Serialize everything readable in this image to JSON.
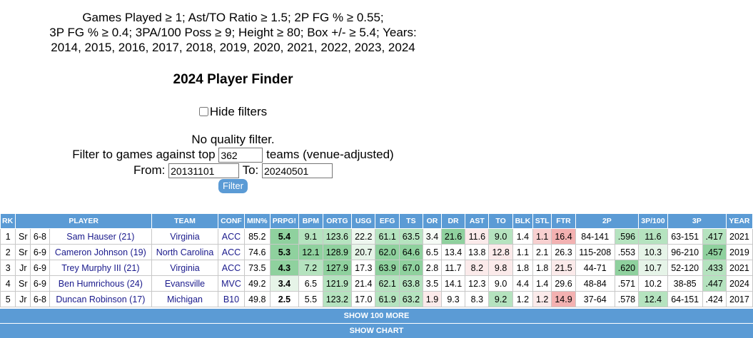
{
  "criteria": {
    "line1": "Games Played ≥ 1; Ast/TO Ratio ≥ 1.5; 2P FG % ≥ 0.55;",
    "line2": "3P FG % ≥ 0.4; 3PA/100 Poss ≥ 9; Height ≥ 80; Box +/- ≥ 5.4; Years:",
    "line3": "2014, 2015, 2016, 2017, 2018, 2019, 2020, 2021, 2022, 2023, 2024"
  },
  "title": "2024 Player Finder",
  "hide_filters_label": "Hide filters",
  "quality_text": "No quality filter.",
  "filter": {
    "prefix": "Filter to games against top",
    "top_value": "362",
    "suffix": "teams (venue-adjusted)",
    "from_label": "From:",
    "from_value": "20131101",
    "to_label": "To:",
    "to_value": "20240501",
    "button": "Filter"
  },
  "columns": [
    "RK",
    "",
    "",
    "PLAYER",
    "TEAM",
    "CONF",
    "MIN%",
    "PRPG!",
    "BPM",
    "ORTG",
    "USG",
    "EFG",
    "TS",
    "OR",
    "DR",
    "AST",
    "TO",
    "BLK",
    "STL",
    "FTR",
    "2P",
    "",
    "3P/100",
    "3P",
    "",
    "YEAR"
  ],
  "rows": [
    {
      "rk": "1",
      "cls": "Sr",
      "ht": "6-8",
      "player": "Sam Hauser (21)",
      "team": "Virginia",
      "conf": "ACC",
      "min": "85.2",
      "prpg": "5.4",
      "bpm": "9.1",
      "ortg": "123.6",
      "usg": "22.2",
      "efg": "61.1",
      "ts": "63.5",
      "or": "3.4",
      "dr": "21.6",
      "ast": "11.6",
      "to": "9.0",
      "blk": "1.4",
      "stl": "1.1",
      "ftr": "16.4",
      "fg2": "84-141",
      "pct2": ".596",
      "p3_100": "11.6",
      "fg3": "63-151",
      "pct3": ".417",
      "year": "2021"
    },
    {
      "rk": "2",
      "cls": "Sr",
      "ht": "6-9",
      "player": "Cameron Johnson (19)",
      "team": "North Carolina",
      "conf": "ACC",
      "min": "74.6",
      "prpg": "5.3",
      "bpm": "12.1",
      "ortg": "128.9",
      "usg": "20.7",
      "efg": "62.0",
      "ts": "64.6",
      "or": "6.5",
      "dr": "13.4",
      "ast": "13.8",
      "to": "12.8",
      "blk": "1.1",
      "stl": "2.1",
      "ftr": "26.3",
      "fg2": "115-208",
      "pct2": ".553",
      "p3_100": "10.3",
      "fg3": "96-210",
      "pct3": ".457",
      "year": "2019"
    },
    {
      "rk": "3",
      "cls": "Jr",
      "ht": "6-9",
      "player": "Trey Murphy III (21)",
      "team": "Virginia",
      "conf": "ACC",
      "min": "73.5",
      "prpg": "4.3",
      "bpm": "7.2",
      "ortg": "127.9",
      "usg": "17.3",
      "efg": "63.9",
      "ts": "67.0",
      "or": "2.8",
      "dr": "11.7",
      "ast": "8.2",
      "to": "9.8",
      "blk": "1.8",
      "stl": "1.8",
      "ftr": "21.5",
      "fg2": "44-71",
      "pct2": ".620",
      "p3_100": "10.7",
      "fg3": "52-120",
      "pct3": ".433",
      "year": "2021"
    },
    {
      "rk": "4",
      "cls": "Sr",
      "ht": "6-9",
      "player": "Ben Humrichous (24)",
      "team": "Evansville",
      "conf": "MVC",
      "min": "49.2",
      "prpg": "3.4",
      "bpm": "6.5",
      "ortg": "121.9",
      "usg": "21.4",
      "efg": "62.1",
      "ts": "63.8",
      "or": "3.5",
      "dr": "14.1",
      "ast": "12.3",
      "to": "9.0",
      "blk": "4.4",
      "stl": "1.4",
      "ftr": "29.6",
      "fg2": "48-84",
      "pct2": ".571",
      "p3_100": "10.2",
      "fg3": "38-85",
      "pct3": ".447",
      "year": "2024"
    },
    {
      "rk": "5",
      "cls": "Jr",
      "ht": "6-8",
      "player": "Duncan Robinson (17)",
      "team": "Michigan",
      "conf": "B10",
      "min": "49.8",
      "prpg": "2.5",
      "bpm": "5.5",
      "ortg": "123.2",
      "usg": "17.0",
      "efg": "61.9",
      "ts": "63.2",
      "or": "1.9",
      "dr": "9.3",
      "ast": "8.3",
      "to": "9.2",
      "blk": "1.2",
      "stl": "1.2",
      "ftr": "14.9",
      "fg2": "37-64",
      "pct2": ".578",
      "p3_100": "12.4",
      "fg3": "64-151",
      "pct3": ".424",
      "year": "2017"
    }
  ],
  "cell_colors": [
    {
      "prpg": "#8fd19e",
      "bpm": "#b5e3bf",
      "ortg": "#b5e3bf",
      "usg": "#eef7ef",
      "efg": "#b5e3bf",
      "ts": "#b5e3bf",
      "or": "#f6fbf6",
      "dr": "#8fd19e",
      "ast": "#fbeaea",
      "to": "#b5e3bf",
      "blk": "#ffffff",
      "stl": "#f8d0d0",
      "ftr": "#f3b1b1",
      "fg2": "#ffffff",
      "pct2": "#b5e3bf",
      "p3_100": "#b5e3bf",
      "fg3": "#ffffff",
      "pct3": "#b5e3bf",
      "year": "#ffffff"
    },
    {
      "prpg": "#8fd19e",
      "bpm": "#8fd19e",
      "ortg": "#8fd19e",
      "usg": "#e6f4e8",
      "efg": "#8fd19e",
      "ts": "#8fd19e",
      "or": "#ffffff",
      "dr": "#ffffff",
      "ast": "#ffffff",
      "to": "#fbeaea",
      "blk": "#ffffff",
      "stl": "#ffffff",
      "ftr": "#ffffff",
      "fg2": "#ffffff",
      "pct2": "#ffffff",
      "p3_100": "#e6f4e8",
      "fg3": "#ffffff",
      "pct3": "#8fd19e",
      "year": "#ffffff"
    },
    {
      "prpg": "#8fd19e",
      "bpm": "#b5e3bf",
      "ortg": "#8fd19e",
      "usg": "#ffffff",
      "efg": "#8fd19e",
      "ts": "#8fd19e",
      "or": "#ffffff",
      "dr": "#ffffff",
      "ast": "#fbeaea",
      "to": "#fbeaea",
      "blk": "#ffffff",
      "stl": "#ffffff",
      "ftr": "#fbeaea",
      "fg2": "#ffffff",
      "pct2": "#8fd19e",
      "p3_100": "#e6f4e8",
      "fg3": "#ffffff",
      "pct3": "#b5e3bf",
      "year": "#ffffff"
    },
    {
      "prpg": "#e6f4e8",
      "bpm": "#ffffff",
      "ortg": "#b5e3bf",
      "usg": "#ffffff",
      "efg": "#b5e3bf",
      "ts": "#b5e3bf",
      "or": "#ffffff",
      "dr": "#ffffff",
      "ast": "#ffffff",
      "to": "#ffffff",
      "blk": "#ffffff",
      "stl": "#ffffff",
      "ftr": "#ffffff",
      "fg2": "#ffffff",
      "pct2": "#ffffff",
      "p3_100": "#ffffff",
      "fg3": "#ffffff",
      "pct3": "#b5e3bf",
      "year": "#ffffff"
    },
    {
      "prpg": "#ffffff",
      "bpm": "#ffffff",
      "ortg": "#b5e3bf",
      "usg": "#ffffff",
      "efg": "#b5e3bf",
      "ts": "#b5e3bf",
      "or": "#fbeaea",
      "dr": "#ffffff",
      "ast": "#ffffff",
      "to": "#b5e3bf",
      "blk": "#ffffff",
      "stl": "#fbeaea",
      "ftr": "#f3b1b1",
      "fg2": "#ffffff",
      "pct2": "#ffffff",
      "p3_100": "#b5e3bf",
      "fg3": "#ffffff",
      "pct3": "#ffffff",
      "year": "#ffffff"
    }
  ],
  "show_more_label": "SHOW 100 MORE",
  "show_chart_label": "SHOW CHART"
}
